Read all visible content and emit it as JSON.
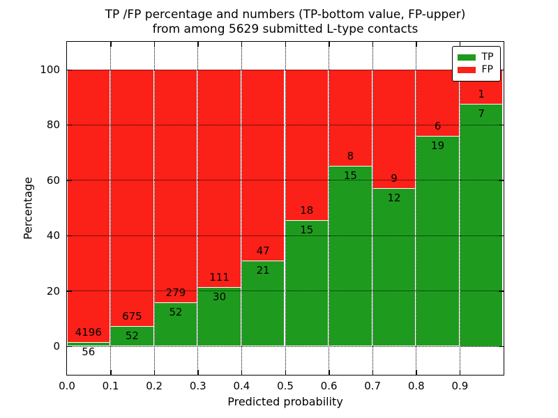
{
  "header": {
    "title_line1": "TP /FP percentage and numbers (TP-bottom value, FP-upper)",
    "title_line2": "from among 5629 submitted L-type contacts"
  },
  "colors": {
    "tp_green": "#1e9b1e",
    "fp_red": "#fb2018",
    "frame": "#000000",
    "background": "#ffffff"
  },
  "chart_data": {
    "type": "bar",
    "subtype": "stacked-percentage-histogram",
    "title": "TP /FP percentage and numbers (TP-bottom value, FP-upper)\nfrom among 5629 submitted L-type contacts",
    "xlabel": "Predicted probability",
    "ylabel": "Percentage",
    "total_contacts": 5629,
    "xlim": [
      0.0,
      1.0
    ],
    "ylim": [
      -10.3,
      110.1
    ],
    "xticks": [
      "0.0",
      "0.1",
      "0.2",
      "0.3",
      "0.4",
      "0.5",
      "0.6",
      "0.7",
      "0.8",
      "0.9"
    ],
    "yticks": [
      "0",
      "20",
      "40",
      "60",
      "80",
      "100"
    ],
    "ytick_values": [
      0,
      20,
      40,
      60,
      80,
      100
    ],
    "grid": "dotted, both axes, on",
    "bin_width": 0.1,
    "categories": [
      "0.0–0.1",
      "0.1–0.2",
      "0.2–0.3",
      "0.3–0.4",
      "0.4–0.5",
      "0.5–0.6",
      "0.6–0.7",
      "0.7–0.8",
      "0.8–0.9",
      "0.9–1.0"
    ],
    "series": [
      {
        "name": "TP",
        "color": "#1e9b1e",
        "counts": [
          56,
          52,
          52,
          30,
          21,
          15,
          15,
          12,
          19,
          7
        ]
      },
      {
        "name": "FP",
        "color": "#fb2018",
        "counts": [
          4196,
          675,
          279,
          111,
          47,
          18,
          8,
          9,
          6,
          1
        ]
      }
    ],
    "tp_percent": [
      1.32,
      7.15,
      15.71,
      21.28,
      30.88,
      45.45,
      65.22,
      57.14,
      76.0,
      87.5
    ],
    "legend": {
      "position": "upper right",
      "entries": [
        {
          "label": "TP",
          "color": "#1e9b1e"
        },
        {
          "label": "FP",
          "color": "#fb2018"
        }
      ]
    }
  }
}
